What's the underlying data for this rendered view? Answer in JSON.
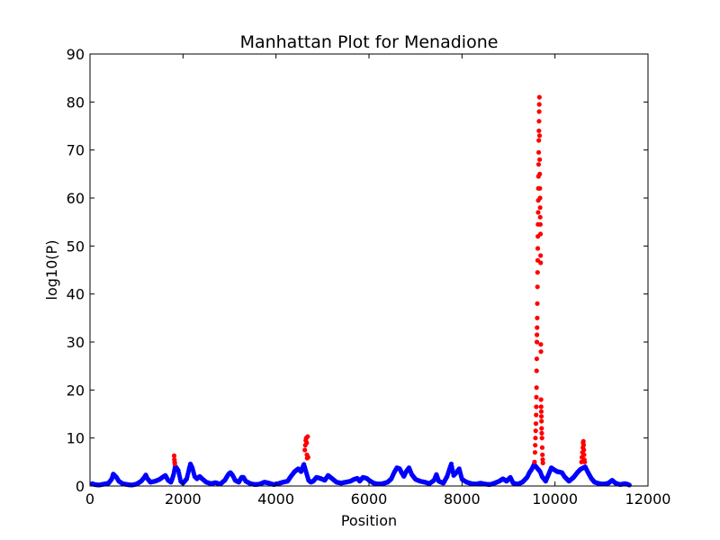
{
  "chart_data": {
    "type": "scatter",
    "title": "Manhattan Plot for Menadione",
    "xlabel": "Position",
    "ylabel": "log10(P)",
    "xlim": [
      0,
      12000
    ],
    "ylim": [
      0,
      90
    ],
    "xticks": [
      0,
      2000,
      4000,
      6000,
      8000,
      10000,
      12000
    ],
    "yticks": [
      0,
      10,
      20,
      30,
      40,
      50,
      60,
      70,
      80,
      90
    ],
    "grid": false,
    "legend": "none",
    "colors": {
      "significant": "#ff0000",
      "background": "#0000ff"
    },
    "series": [
      {
        "color": "#0000ff",
        "points": [
          [
            50,
            0.5
          ],
          [
            100,
            0.3
          ],
          [
            200,
            0.2
          ],
          [
            300,
            0.4
          ],
          [
            400,
            0.6
          ],
          [
            470,
            1.5
          ],
          [
            500,
            2.5
          ],
          [
            530,
            2.2
          ],
          [
            570,
            1.8
          ],
          [
            620,
            1.0
          ],
          [
            700,
            0.5
          ],
          [
            800,
            0.3
          ],
          [
            900,
            0.2
          ],
          [
            1000,
            0.4
          ],
          [
            1100,
            1.0
          ],
          [
            1170,
            1.8
          ],
          [
            1200,
            2.3
          ],
          [
            1230,
            1.6
          ],
          [
            1300,
            0.8
          ],
          [
            1400,
            1.0
          ],
          [
            1500,
            1.4
          ],
          [
            1570,
            1.9
          ],
          [
            1620,
            2.2
          ],
          [
            1680,
            1.2
          ],
          [
            1740,
            0.8
          ],
          [
            1770,
            1.5
          ],
          [
            1800,
            2.5
          ],
          [
            1830,
            4.0
          ],
          [
            1860,
            3.8
          ],
          [
            1900,
            3.2
          ],
          [
            1950,
            1.0
          ],
          [
            2000,
            0.6
          ],
          [
            2080,
            1.5
          ],
          [
            2130,
            3.5
          ],
          [
            2160,
            4.6
          ],
          [
            2200,
            3.8
          ],
          [
            2250,
            2.0
          ],
          [
            2300,
            1.5
          ],
          [
            2360,
            2.0
          ],
          [
            2400,
            1.6
          ],
          [
            2500,
            0.8
          ],
          [
            2600,
            0.5
          ],
          [
            2700,
            0.7
          ],
          [
            2800,
            0.4
          ],
          [
            2900,
            1.2
          ],
          [
            2980,
            2.5
          ],
          [
            3020,
            2.8
          ],
          [
            3070,
            2.2
          ],
          [
            3120,
            1.2
          ],
          [
            3200,
            0.8
          ],
          [
            3260,
            1.8
          ],
          [
            3300,
            1.8
          ],
          [
            3350,
            1.0
          ],
          [
            3450,
            0.5
          ],
          [
            3550,
            0.3
          ],
          [
            3650,
            0.4
          ],
          [
            3750,
            0.8
          ],
          [
            3850,
            0.6
          ],
          [
            3950,
            0.3
          ],
          [
            4050,
            0.5
          ],
          [
            4150,
            0.8
          ],
          [
            4250,
            1.0
          ],
          [
            4320,
            2.0
          ],
          [
            4400,
            3.0
          ],
          [
            4480,
            3.6
          ],
          [
            4540,
            3.0
          ],
          [
            4570,
            3.8
          ],
          [
            4600,
            4.5
          ],
          [
            4700,
            1.2
          ],
          [
            4750,
            0.8
          ],
          [
            4800,
            1.0
          ],
          [
            4870,
            1.8
          ],
          [
            4950,
            1.6
          ],
          [
            5050,
            1.2
          ],
          [
            5120,
            2.2
          ],
          [
            5200,
            1.6
          ],
          [
            5300,
            0.8
          ],
          [
            5400,
            0.6
          ],
          [
            5500,
            0.8
          ],
          [
            5600,
            1.0
          ],
          [
            5680,
            1.4
          ],
          [
            5750,
            1.6
          ],
          [
            5800,
            1.0
          ],
          [
            5870,
            1.8
          ],
          [
            5950,
            1.6
          ],
          [
            6000,
            1.2
          ],
          [
            6100,
            0.6
          ],
          [
            6200,
            0.4
          ],
          [
            6300,
            0.5
          ],
          [
            6400,
            0.8
          ],
          [
            6480,
            1.5
          ],
          [
            6540,
            2.8
          ],
          [
            6600,
            3.8
          ],
          [
            6660,
            3.6
          ],
          [
            6700,
            2.8
          ],
          [
            6750,
            2.0
          ],
          [
            6800,
            3.0
          ],
          [
            6860,
            3.8
          ],
          [
            6920,
            2.4
          ],
          [
            7000,
            1.4
          ],
          [
            7100,
            1.0
          ],
          [
            7200,
            0.8
          ],
          [
            7300,
            0.5
          ],
          [
            7400,
            1.2
          ],
          [
            7450,
            2.4
          ],
          [
            7500,
            1.0
          ],
          [
            7600,
            0.6
          ],
          [
            7680,
            2.0
          ],
          [
            7730,
            3.5
          ],
          [
            7770,
            4.6
          ],
          [
            7820,
            2.2
          ],
          [
            7880,
            2.8
          ],
          [
            7940,
            3.6
          ],
          [
            8000,
            1.4
          ],
          [
            8100,
            0.8
          ],
          [
            8200,
            0.5
          ],
          [
            8300,
            0.4
          ],
          [
            8400,
            0.6
          ],
          [
            8500,
            0.4
          ],
          [
            8600,
            0.3
          ],
          [
            8700,
            0.6
          ],
          [
            8800,
            1.0
          ],
          [
            8880,
            1.5
          ],
          [
            8960,
            1.0
          ],
          [
            9040,
            1.8
          ],
          [
            9100,
            0.6
          ],
          [
            9200,
            0.4
          ],
          [
            9300,
            0.8
          ],
          [
            9400,
            1.8
          ],
          [
            9450,
            2.8
          ],
          [
            9500,
            3.5
          ],
          [
            9550,
            4.5
          ],
          [
            9680,
            3.0
          ],
          [
            9720,
            2.0
          ],
          [
            9800,
            1.0
          ],
          [
            9870,
            2.6
          ],
          [
            9920,
            3.8
          ],
          [
            9980,
            3.4
          ],
          [
            10050,
            3.0
          ],
          [
            10150,
            2.8
          ],
          [
            10200,
            2.0
          ],
          [
            10300,
            1.0
          ],
          [
            10400,
            1.8
          ],
          [
            10480,
            2.8
          ],
          [
            10550,
            3.5
          ],
          [
            10650,
            4.0
          ],
          [
            10700,
            3.0
          ],
          [
            10780,
            1.6
          ],
          [
            10850,
            0.8
          ],
          [
            10950,
            0.5
          ],
          [
            11050,
            0.4
          ],
          [
            11150,
            0.6
          ],
          [
            11230,
            1.2
          ],
          [
            11300,
            0.6
          ],
          [
            11400,
            0.3
          ],
          [
            11500,
            0.5
          ],
          [
            11550,
            0.4
          ],
          [
            11600,
            0.2
          ]
        ]
      },
      {
        "color": "#ff0000",
        "points": [
          [
            1810,
            6.3
          ],
          [
            1815,
            5.5
          ],
          [
            1820,
            5.0
          ],
          [
            1825,
            4.6
          ],
          [
            4620,
            7.5
          ],
          [
            4630,
            8.5
          ],
          [
            4640,
            9.5
          ],
          [
            4650,
            10.0
          ],
          [
            4660,
            9.0
          ],
          [
            4665,
            6.5
          ],
          [
            4670,
            5.8
          ],
          [
            4680,
            10.3
          ],
          [
            4690,
            6.0
          ],
          [
            9560,
            5.0
          ],
          [
            9570,
            7.0
          ],
          [
            9575,
            8.5
          ],
          [
            9580,
            10.0
          ],
          [
            9585,
            11.5
          ],
          [
            9590,
            13.0
          ],
          [
            9595,
            14.8
          ],
          [
            9598,
            16.5
          ],
          [
            9600,
            18.5
          ],
          [
            9603,
            20.5
          ],
          [
            9605,
            24.0
          ],
          [
            9608,
            26.5
          ],
          [
            9610,
            30.0
          ],
          [
            9612,
            31.5
          ],
          [
            9615,
            33.0
          ],
          [
            9618,
            35.0
          ],
          [
            9620,
            38.0
          ],
          [
            9623,
            41.5
          ],
          [
            9625,
            44.5
          ],
          [
            9628,
            47.0
          ],
          [
            9630,
            49.5
          ],
          [
            9632,
            52.0
          ],
          [
            9635,
            54.5
          ],
          [
            9638,
            57.0
          ],
          [
            9640,
            59.5
          ],
          [
            9642,
            62.0
          ],
          [
            9645,
            64.5
          ],
          [
            9648,
            67.0
          ],
          [
            9650,
            69.5
          ],
          [
            9652,
            72.0
          ],
          [
            9655,
            74.0
          ],
          [
            9657,
            76.0
          ],
          [
            9660,
            78.0
          ],
          [
            9662,
            79.5
          ],
          [
            9665,
            81.0
          ],
          [
            9668,
            73.0
          ],
          [
            9670,
            68.0
          ],
          [
            9672,
            65.0
          ],
          [
            9675,
            62.0
          ],
          [
            9678,
            60.0
          ],
          [
            9680,
            58.0
          ],
          [
            9682,
            56.0
          ],
          [
            9685,
            54.5
          ],
          [
            9688,
            52.5
          ],
          [
            9690,
            48.0
          ],
          [
            9692,
            46.5
          ],
          [
            9695,
            29.5
          ],
          [
            9698,
            28.0
          ],
          [
            9700,
            18.0
          ],
          [
            9702,
            16.5
          ],
          [
            9705,
            15.5
          ],
          [
            9708,
            14.5
          ],
          [
            9710,
            13.5
          ],
          [
            9712,
            12.0
          ],
          [
            9715,
            11.0
          ],
          [
            9720,
            10.0
          ],
          [
            9725,
            8.0
          ],
          [
            9730,
            6.5
          ],
          [
            9735,
            5.5
          ],
          [
            9740,
            4.8
          ],
          [
            10570,
            5.0
          ],
          [
            10580,
            6.0
          ],
          [
            10590,
            7.0
          ],
          [
            10600,
            8.0
          ],
          [
            10605,
            9.0
          ],
          [
            10610,
            9.3
          ],
          [
            10615,
            8.5
          ],
          [
            10620,
            7.5
          ],
          [
            10625,
            6.5
          ],
          [
            10630,
            5.5
          ],
          [
            10640,
            5.0
          ]
        ]
      }
    ]
  }
}
